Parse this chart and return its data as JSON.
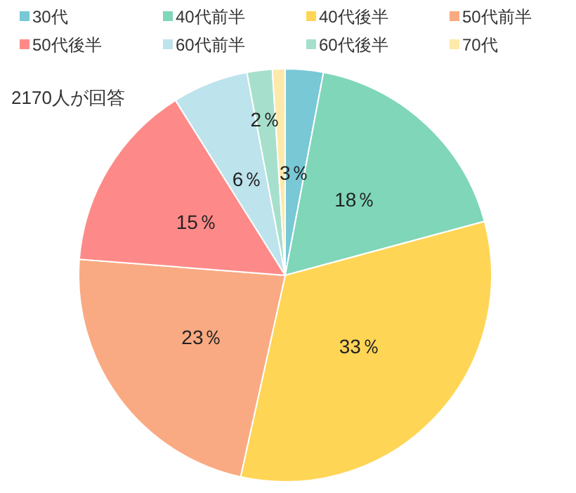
{
  "chart_data": {
    "type": "pie",
    "categories": [
      "30代",
      "40代前半",
      "40代後半",
      "50代前半",
      "50代後半",
      "60代前半",
      "60代後半",
      "70代"
    ],
    "values": [
      3,
      18,
      33,
      23,
      15,
      6,
      2,
      1
    ],
    "value_labels": [
      "3％",
      "18％",
      "33％",
      "23％",
      "15％",
      "6％",
      "2％",
      null
    ],
    "colors": [
      "#78c8d6",
      "#7fd6b8",
      "#ffd556",
      "#f9aa82",
      "#fd8a88",
      "#bde3ec",
      "#a6e0cc",
      "#fde9a9"
    ],
    "annotations": [
      "2170人が回答"
    ],
    "legend": "top"
  }
}
